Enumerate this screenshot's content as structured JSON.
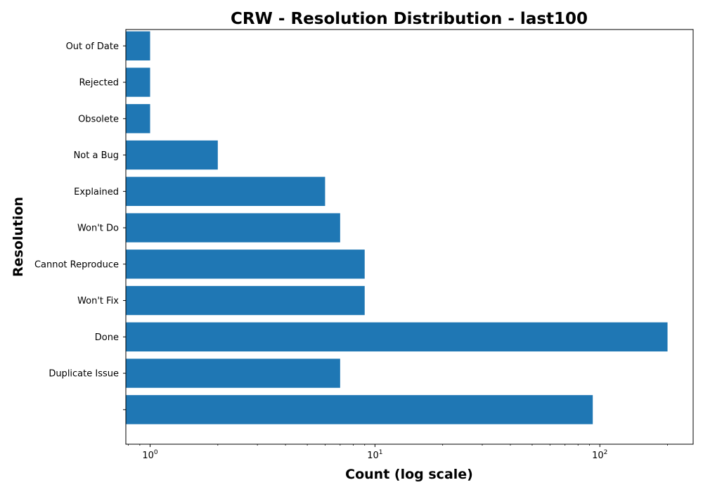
{
  "chart_data": {
    "type": "bar",
    "orientation": "horizontal",
    "title": "CRW - Resolution Distribution - last100",
    "xlabel": "Count (log scale)",
    "ylabel": "Resolution",
    "x_scale": "log",
    "xlim": [
      0.78,
      260
    ],
    "x_ticks": [
      {
        "value": 1,
        "base": "10",
        "exp": "0"
      },
      {
        "value": 10,
        "base": "10",
        "exp": "1"
      },
      {
        "value": 100,
        "base": "10",
        "exp": "2"
      }
    ],
    "categories": [
      "",
      "Duplicate Issue",
      "Done",
      "Won't Fix",
      "Cannot Reproduce",
      "Won't Do",
      "Explained",
      "Not a Bug",
      "Obsolete",
      "Rejected",
      "Out of Date"
    ],
    "values": [
      93,
      7,
      200,
      9,
      9,
      7,
      6,
      2,
      1,
      1,
      1
    ],
    "bar_color": "#1f77b4",
    "grid": false,
    "legend": "none"
  }
}
